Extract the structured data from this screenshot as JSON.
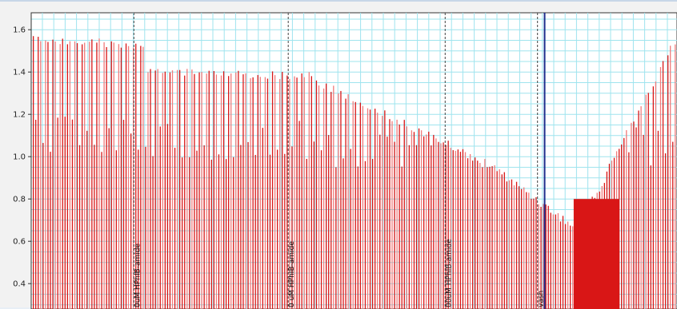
{
  "chart_data": {
    "type": "bar",
    "title": "",
    "xlabel": "",
    "ylabel": "",
    "ylim": [
      0.28,
      1.68
    ],
    "yticks": [
      0.4,
      0.6,
      0.8,
      1.0,
      1.2,
      1.4,
      1.6
    ],
    "ytick_labels": [
      "0.4",
      "0.6",
      "0.8",
      "1.0",
      "1.2",
      "1.4",
      "1.6"
    ],
    "grid": true,
    "colors": {
      "bar": "#d91616",
      "bar_light": "#f07b7b",
      "grid": "#9fe4ee",
      "marker": "#444444",
      "cursor": "#1c2c8c",
      "plot_bg": "#ffffff"
    },
    "segments": [
      {
        "start": 0,
        "end": 0.18,
        "peak_from": 1.57,
        "peak_to": 1.55,
        "base": 0.64
      },
      {
        "start": 0.18,
        "end": 0.44,
        "peak_from": 1.42,
        "peak_to": 1.4,
        "base": 0.63
      },
      {
        "start": 0.44,
        "end": 0.71,
        "peak_from": 1.38,
        "peak_to": 0.98,
        "base": 0.6
      },
      {
        "start": 0.71,
        "end": 0.86,
        "peak_from": 0.98,
        "peak_to": 0.64,
        "base": 0.6
      },
      {
        "start": 0.86,
        "end": 0.89,
        "peak_from": 0.8,
        "peak_to": 0.9,
        "base": 0.55
      },
      {
        "start": 0.89,
        "end": 1.0,
        "peak_from": 0.95,
        "peak_to": 1.59,
        "base": 0.6
      }
    ],
    "markers": [
      {
        "label": "0uM HPhIB-amide"
      },
      {
        "label": "0 uM HPhIB-amide"
      },
      {
        "label": "00uM HPhIB-amide"
      },
      {
        "label": "vash"
      }
    ]
  }
}
